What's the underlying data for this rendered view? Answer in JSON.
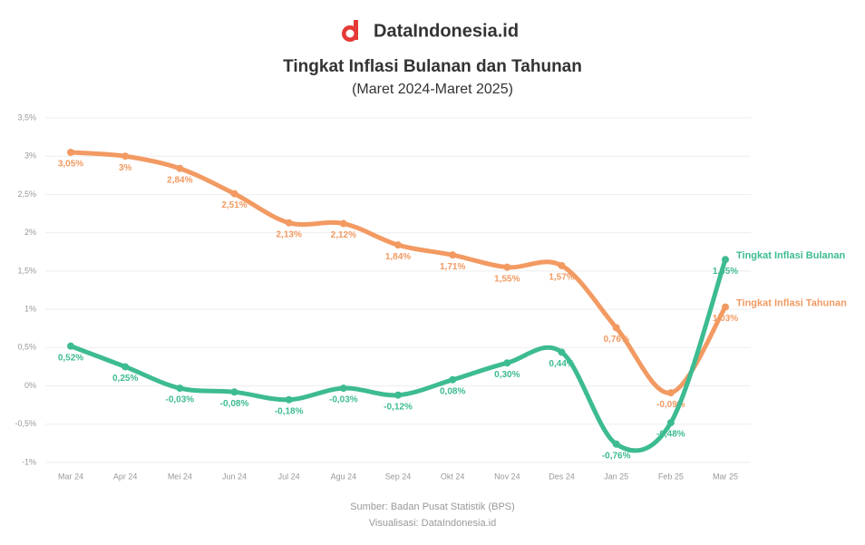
{
  "brand": "DataIndonesia.id",
  "chart_data": {
    "type": "line",
    "title": "Tingkat Inflasi Bulanan dan Tahunan",
    "subtitle": "(Maret 2024-Maret 2025)",
    "categories": [
      "Mar 24",
      "Apr 24",
      "Mei 24",
      "Jun 24",
      "Jul 24",
      "Agu 24",
      "Sep 24",
      "Okt 24",
      "Nov 24",
      "Des 24",
      "Jan 25",
      "Feb 25",
      "Mar 25"
    ],
    "series": [
      {
        "name": "Tingkat Inflasi Tahunan",
        "color": "#f29a62",
        "values": [
          3.05,
          3.0,
          2.84,
          2.51,
          2.13,
          2.12,
          1.84,
          1.71,
          1.55,
          1.57,
          0.76,
          -0.09,
          1.03
        ],
        "value_labels": [
          "3,05%",
          "3%",
          "2,84%",
          "2,51%",
          "2,13%",
          "2,12%",
          "1,84%",
          "1,71%",
          "1,55%",
          "1,57%",
          "0,76%",
          "-0,09%",
          "1,03%"
        ]
      },
      {
        "name": "Tingkat Inflasi Bulanan",
        "color": "#3dbb91",
        "values": [
          0.52,
          0.25,
          -0.03,
          -0.08,
          -0.18,
          -0.03,
          -0.12,
          0.08,
          0.3,
          0.44,
          -0.76,
          -0.48,
          1.65
        ],
        "value_labels": [
          "0,52%",
          "0,25%",
          "-0,03%",
          "-0,08%",
          "-0,18%",
          "-0,03%",
          "-0,12%",
          "0,08%",
          "0,30%",
          "0,44%",
          "-0,76%",
          "-0,48%",
          "1,65%"
        ]
      }
    ],
    "ylim": [
      -1,
      3.5
    ],
    "yticks": [
      {
        "value": -1,
        "label": "-1%"
      },
      {
        "value": -0.5,
        "label": "-0,5%"
      },
      {
        "value": 0,
        "label": "0%"
      },
      {
        "value": 0.5,
        "label": "0,5%"
      },
      {
        "value": 1,
        "label": "1%"
      },
      {
        "value": 1.5,
        "label": "1,5%"
      },
      {
        "value": 2,
        "label": "2%"
      },
      {
        "value": 2.5,
        "label": "2,5%"
      },
      {
        "value": 3,
        "label": "3%"
      },
      {
        "value": 3.5,
        "label": "3,5%"
      }
    ],
    "grid": true,
    "source": "Sumber: Badan Pusat Statistik (BPS)",
    "credit": "Visualisasi: DataIndonesia.id"
  }
}
